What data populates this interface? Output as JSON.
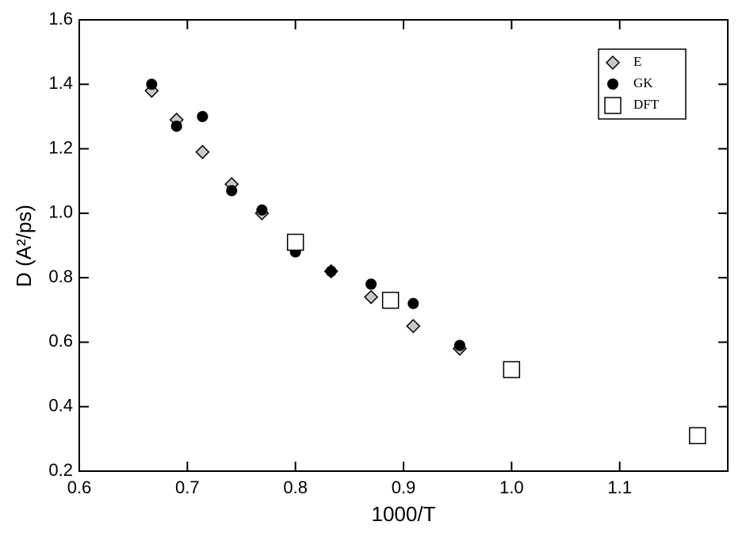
{
  "chart_data": {
    "type": "scatter",
    "xlabel": "1000/T",
    "ylabel": "D (A²/ps)",
    "xlim": [
      0.6,
      1.2
    ],
    "ylim": [
      0.2,
      1.6
    ],
    "xticks": [
      0.6,
      0.7,
      0.8,
      0.9,
      {
        "value": 1,
        "label": "1.0"
      },
      1.1
    ],
    "yticks": [
      0.2,
      0.4,
      0.6,
      0.8,
      {
        "value": 1,
        "label": "1.0"
      },
      1.2,
      1.4,
      1.6
    ],
    "legend": "upper right",
    "series": [
      {
        "name": "E",
        "marker": "diamond",
        "color": "#c8c8c8",
        "x": [
          0.667,
          0.69,
          0.714,
          0.741,
          0.769,
          0.8,
          0.833,
          0.87,
          0.909,
          0.952
        ],
        "values": [
          1.38,
          1.29,
          1.19,
          1.09,
          1.0,
          0.91,
          0.82,
          0.74,
          0.65,
          0.58
        ]
      },
      {
        "name": "GK",
        "marker": "circle",
        "color": "#000000",
        "x": [
          0.667,
          0.69,
          0.714,
          0.741,
          0.769,
          0.8,
          0.833,
          0.87,
          0.909,
          0.952
        ],
        "values": [
          1.4,
          1.27,
          1.3,
          1.07,
          1.01,
          0.88,
          0.82,
          0.78,
          0.72,
          0.59
        ]
      },
      {
        "name": "DFT",
        "marker": "square",
        "color": "#ffffff",
        "x": [
          0.8,
          0.888,
          1.0,
          1.172
        ],
        "values": [
          0.91,
          0.73,
          0.515,
          0.31
        ]
      }
    ]
  }
}
